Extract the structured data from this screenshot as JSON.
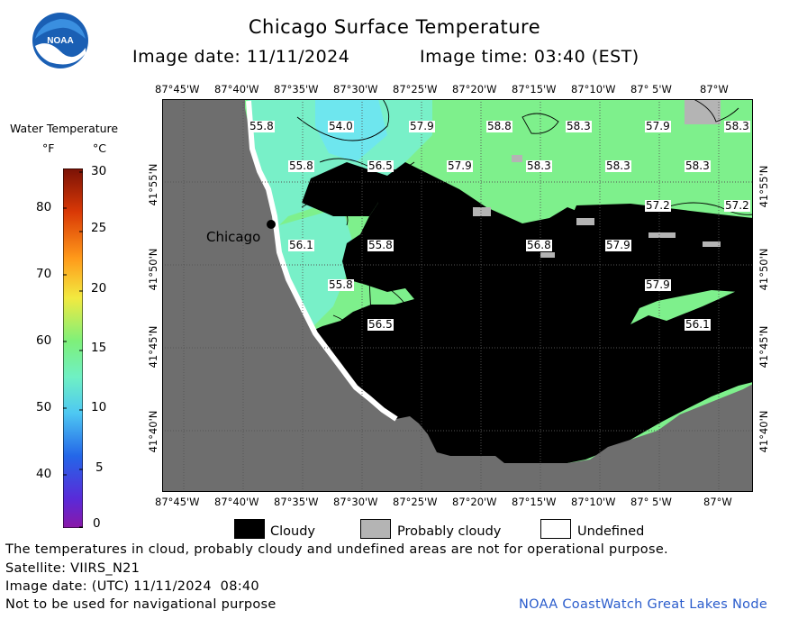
{
  "header": {
    "title": "Chicago Surface Temperature",
    "image_date": "Image date: 11/11/2024",
    "image_time": "Image time: 03:40 (EST)",
    "logo_text": "NOAA"
  },
  "legend": {
    "title": "Water Temperature",
    "unit_f": "°F",
    "unit_c": "°C",
    "f_ticks": [
      "80",
      "70",
      "60",
      "50",
      "40"
    ],
    "c_ticks": [
      "30",
      "25",
      "20",
      "15",
      "10",
      "5",
      "0"
    ]
  },
  "map": {
    "lon_labels": [
      "87°45'W",
      "87°40'W",
      "87°35'W",
      "87°30'W",
      "87°25'W",
      "87°20'W",
      "87°15'W",
      "87°10'W",
      "87° 5'W",
      "87°W"
    ],
    "lat_labels": [
      "41°55'N",
      "41°50'N",
      "41°45'N",
      "41°40'N"
    ],
    "city_label": "Chicago",
    "temperature_labels": [
      "55.8",
      "54.0",
      "57.9",
      "58.8",
      "58.3",
      "57.9",
      "58.3",
      "55.8",
      "56.5",
      "57.9",
      "58.3",
      "58.3",
      "58.3",
      "57.2",
      "57.2",
      "56.1",
      "55.8",
      "56.8",
      "57.9",
      "55.8",
      "57.9",
      "56.5",
      "56.1"
    ],
    "colors": {
      "land": "#6e6e6e",
      "water_warm": "#7ef08c",
      "water_cool": "#78f0c8",
      "water_coolest": "#6ee6ee",
      "cloudy": "#000000",
      "probably_cloudy": "#b4b4b4",
      "undefined": "#ffffff"
    }
  },
  "key": {
    "cloudy": "Cloudy",
    "probably_cloudy": "Probably cloudy",
    "undefined": "Undefined"
  },
  "footer": {
    "disclaimer": "The temperatures in cloud, probably cloudy and undefined areas are not for operational purpose.",
    "satellite": "Satellite: VIIRS_N21",
    "utc_date": "Image date: (UTC) 11/11/2024  08:40",
    "navigation": "Not to be used for navigational purpose",
    "credit": "NOAA CoastWatch Great Lakes Node"
  }
}
